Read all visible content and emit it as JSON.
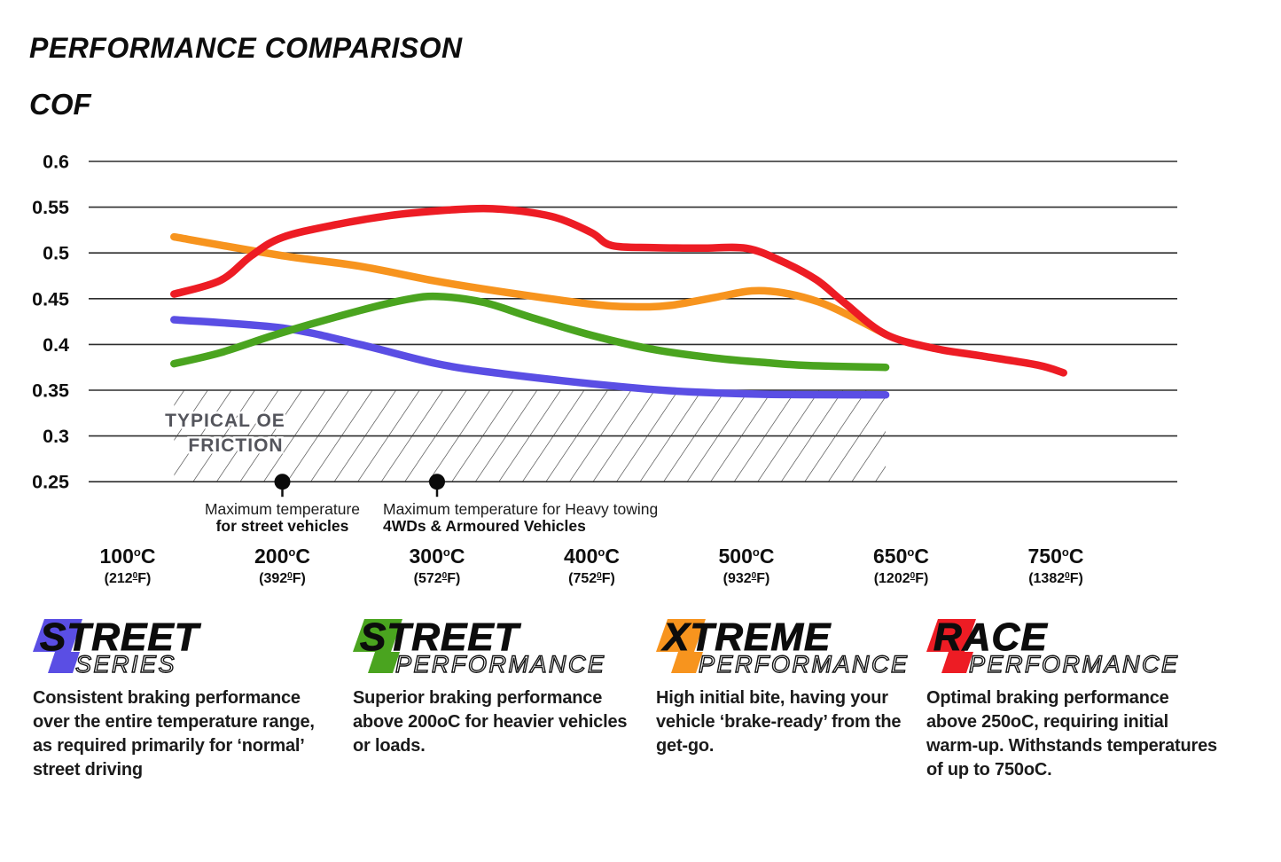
{
  "header": {
    "title": "PERFORMANCE COMPARISON",
    "axis_title": "COF"
  },
  "chart_data": {
    "type": "line",
    "title": "PERFORMANCE COMPARISON",
    "ylabel": "COF",
    "x_axis": {
      "categories_c": [
        100,
        200,
        300,
        400,
        500,
        650,
        750
      ],
      "labels_c": [
        "100",
        "200",
        "300",
        "400",
        "500",
        "650",
        "750"
      ],
      "sup_c": "o",
      "unit_c": "C",
      "labels_f": [
        "212",
        "392",
        "572",
        "752",
        "932",
        "1202",
        "1382"
      ],
      "sup_f": "0",
      "unit_f": "F"
    },
    "y_axis": {
      "min": 0.25,
      "max": 0.6,
      "step": 0.05,
      "tick_labels": [
        "0.6",
        "0.55",
        "0.5",
        "0.45",
        "0.4",
        "0.35",
        "0.3",
        "0.25"
      ]
    },
    "grid": true,
    "series": [
      {
        "name": "Street Series",
        "color": "#5a4ee4",
        "points": [
          [
            130,
            0.427
          ],
          [
            200,
            0.418
          ],
          [
            250,
            0.4
          ],
          [
            300,
            0.379
          ],
          [
            340,
            0.3685
          ],
          [
            400,
            0.357
          ],
          [
            450,
            0.3495
          ],
          [
            500,
            0.346
          ],
          [
            555,
            0.3452
          ],
          [
            635,
            0.345
          ]
        ]
      },
      {
        "name": "Street Performance",
        "color": "#4aa41f",
        "points": [
          [
            130,
            0.379
          ],
          [
            160,
            0.391
          ],
          [
            200,
            0.413
          ],
          [
            250,
            0.437
          ],
          [
            280,
            0.449
          ],
          [
            300,
            0.4525
          ],
          [
            330,
            0.446
          ],
          [
            360,
            0.43
          ],
          [
            400,
            0.41
          ],
          [
            440,
            0.3945
          ],
          [
            480,
            0.385
          ],
          [
            520,
            0.38
          ],
          [
            560,
            0.377
          ],
          [
            635,
            0.375
          ]
        ]
      },
      {
        "name": "Xtreme Performance",
        "color": "#f7941e",
        "points": [
          [
            130,
            0.5175
          ],
          [
            200,
            0.497
          ],
          [
            250,
            0.4855
          ],
          [
            300,
            0.469
          ],
          [
            350,
            0.4555
          ],
          [
            400,
            0.444
          ],
          [
            425,
            0.4412
          ],
          [
            450,
            0.4425
          ],
          [
            480,
            0.4515
          ],
          [
            505,
            0.4585
          ],
          [
            535,
            0.4565
          ],
          [
            570,
            0.4465
          ],
          [
            600,
            0.4315
          ],
          [
            635,
            0.411
          ]
        ]
      },
      {
        "name": "Race Performance",
        "color": "#ed1c24",
        "points": [
          [
            130,
            0.455
          ],
          [
            160,
            0.47
          ],
          [
            180,
            0.497
          ],
          [
            200,
            0.517
          ],
          [
            235,
            0.531
          ],
          [
            270,
            0.541
          ],
          [
            300,
            0.546
          ],
          [
            330,
            0.5485
          ],
          [
            355,
            0.5455
          ],
          [
            378,
            0.538
          ],
          [
            400,
            0.522
          ],
          [
            413,
            0.508
          ],
          [
            440,
            0.5058
          ],
          [
            470,
            0.5052
          ],
          [
            500,
            0.505
          ],
          [
            535,
            0.4905
          ],
          [
            568,
            0.4705
          ],
          [
            595,
            0.4455
          ],
          [
            635,
            0.411
          ],
          [
            672,
            0.3955
          ],
          [
            700,
            0.388
          ],
          [
            738,
            0.3775
          ],
          [
            755,
            0.369
          ]
        ]
      }
    ],
    "oe_band": {
      "label_line1": "TYPICAL OE",
      "label_line2": "FRICTION",
      "cof_range": [
        0.25,
        0.35
      ],
      "temp_range_c": [
        130,
        635
      ]
    },
    "annotations": [
      {
        "at_c": 200,
        "line1": "Maximum temperature",
        "line2": "for street vehicles"
      },
      {
        "at_c": 300,
        "line1": "Maximum temperature for Heavy towing",
        "line2": "4WDs & Armoured Vehicles"
      }
    ]
  },
  "legend": {
    "items": [
      {
        "word_top": "STREET",
        "word_bottom": "SERIES",
        "color": "#5a4ee4",
        "description": "Consistent braking performance over the entire temperature range, as required primarily for ‘normal’ street driving"
      },
      {
        "word_top": "STREET",
        "word_bottom": "PERFORMANCE",
        "color": "#4aa41f",
        "description": "Superior braking performance above 200oC for heavier vehicles or loads."
      },
      {
        "word_top": "XTREME",
        "word_bottom": "PERFORMANCE",
        "color": "#f7941e",
        "description": "High initial bite, having your vehicle ‘brake-ready’ from the get-go."
      },
      {
        "word_top": "RACE",
        "word_bottom": "PERFORMANCE",
        "color": "#ed1c24",
        "description": "Optimal braking performance above 250oC, requiring initial warm-up. Withstands temperatures of up to 750oC."
      }
    ]
  }
}
